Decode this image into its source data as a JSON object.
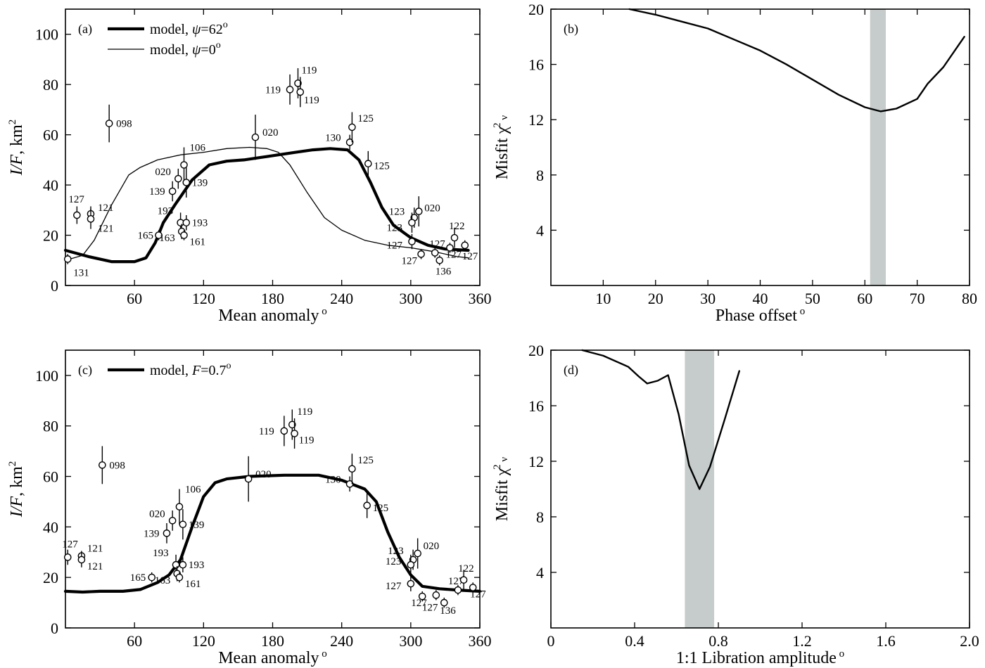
{
  "chart_data": [
    {
      "id": "a",
      "type": "scatter",
      "panel_label": "(a)",
      "xlabel": "Mean anomaly",
      "xlabel_sup": "o",
      "ylabel_italic": "I/F",
      "ylabel_rest": ", km",
      "ylabel_sup": "2",
      "xlim": [
        0,
        360
      ],
      "ylim": [
        0,
        110
      ],
      "xticks": [
        60,
        120,
        180,
        240,
        300,
        360
      ],
      "yticks": [
        0,
        20,
        40,
        60,
        80,
        100
      ],
      "legend": [
        {
          "pre": "model, ",
          "italic": "ψ",
          "post": "=62",
          "sup": "o",
          "style": "thick"
        },
        {
          "pre": "model, ",
          "italic": "ψ",
          "post": "=0",
          "sup": "o",
          "style": "thin"
        }
      ],
      "points": [
        {
          "x": 2,
          "y": 10.5,
          "err": 2,
          "label": "131"
        },
        {
          "x": 10,
          "y": 28,
          "err": 3.5,
          "label": "127"
        },
        {
          "x": 22,
          "y": 28.5,
          "err": 3,
          "label": "121"
        },
        {
          "x": 22,
          "y": 26.5,
          "err": 4,
          "label": "121"
        },
        {
          "x": 38,
          "y": 64.5,
          "err": 7.5,
          "label": "098"
        },
        {
          "x": 81,
          "y": 20,
          "err": 2,
          "label": "165"
        },
        {
          "x": 93,
          "y": 37.5,
          "err": 4,
          "label": "139"
        },
        {
          "x": 98,
          "y": 42.5,
          "err": 4,
          "label": "020"
        },
        {
          "x": 103,
          "y": 48,
          "err": 7,
          "label": "106"
        },
        {
          "x": 105,
          "y": 41,
          "err": 6,
          "label": "139"
        },
        {
          "x": 100,
          "y": 25,
          "err": 4,
          "label": "193"
        },
        {
          "x": 105,
          "y": 25,
          "err": 3,
          "label": "193"
        },
        {
          "x": 101,
          "y": 21.5,
          "err": 3,
          "label": "163"
        },
        {
          "x": 103,
          "y": 20,
          "err": 2,
          "label": "161"
        },
        {
          "x": 165,
          "y": 59,
          "err": 9,
          "label": "020"
        },
        {
          "x": 195,
          "y": 78,
          "err": 6,
          "label": "119"
        },
        {
          "x": 202,
          "y": 80.5,
          "err": 6,
          "label": "119"
        },
        {
          "x": 204,
          "y": 77,
          "err": 6,
          "label": "119"
        },
        {
          "x": 247,
          "y": 57,
          "err": 3,
          "label": "130"
        },
        {
          "x": 249,
          "y": 63,
          "err": 6,
          "label": "125"
        },
        {
          "x": 263,
          "y": 48.5,
          "err": 5,
          "label": "125"
        },
        {
          "x": 303,
          "y": 27,
          "err": 4,
          "label": "123"
        },
        {
          "x": 307,
          "y": 29.5,
          "err": 6,
          "label": "020"
        },
        {
          "x": 301,
          "y": 25,
          "err": 4,
          "label": "123"
        },
        {
          "x": 301,
          "y": 17.5,
          "err": 3,
          "label": "127"
        },
        {
          "x": 309,
          "y": 12.5,
          "err": 2,
          "label": "127"
        },
        {
          "x": 321,
          "y": 13,
          "err": 2,
          "label": "127"
        },
        {
          "x": 325,
          "y": 10,
          "err": 2,
          "label": "136"
        },
        {
          "x": 334,
          "y": 15,
          "err": 2,
          "label": "127"
        },
        {
          "x": 338,
          "y": 19,
          "err": 4,
          "label": "122"
        },
        {
          "x": 347,
          "y": 16,
          "err": 2,
          "label": "127"
        }
      ],
      "series": [
        {
          "name": "model, ψ=62°",
          "style": "thick",
          "x": [
            0,
            20,
            40,
            60,
            70,
            78,
            85,
            95,
            110,
            125,
            140,
            155,
            170,
            185,
            200,
            215,
            230,
            245,
            255,
            265,
            275,
            285,
            300,
            315,
            330,
            350
          ],
          "y": [
            14,
            11.5,
            9.5,
            9.5,
            11,
            17,
            25,
            32,
            42,
            48,
            49.5,
            50,
            51,
            52,
            53,
            54,
            54.5,
            54,
            50,
            41,
            31,
            24,
            19,
            16,
            14.5,
            14
          ]
        },
        {
          "name": "model, ψ=0°",
          "style": "thin",
          "x": [
            0,
            15,
            25,
            40,
            55,
            65,
            80,
            100,
            120,
            140,
            160,
            175,
            185,
            195,
            210,
            225,
            240,
            260,
            280,
            300,
            320,
            340,
            350
          ],
          "y": [
            10,
            12,
            18,
            32,
            44,
            47,
            50,
            52,
            53,
            54.5,
            55,
            54.5,
            53,
            48,
            37,
            27,
            22,
            18,
            16,
            15,
            13.5,
            11.5,
            11
          ]
        }
      ]
    },
    {
      "id": "b",
      "type": "line",
      "panel_label": "(b)",
      "xlabel": "Phase offset",
      "xlabel_sup": "o",
      "ylabel": "Misfit χ",
      "ylabel_sup": "2",
      "ylabel_sub": "ν",
      "xlim": [
        0,
        80
      ],
      "ylim": [
        0,
        20
      ],
      "xticks": [
        10,
        20,
        30,
        40,
        50,
        60,
        70,
        80
      ],
      "yticks": [
        4,
        8,
        12,
        16,
        20
      ],
      "shaded_band": [
        61,
        64
      ],
      "series": [
        {
          "name": "misfit",
          "x": [
            15,
            20,
            25,
            30,
            35,
            40,
            45,
            50,
            55,
            60,
            63,
            66,
            70,
            72,
            75,
            79
          ],
          "y": [
            20,
            19.6,
            19.1,
            18.6,
            17.8,
            17.0,
            16.0,
            14.9,
            13.8,
            12.9,
            12.6,
            12.8,
            13.5,
            14.6,
            15.8,
            18.0
          ]
        }
      ]
    },
    {
      "id": "c",
      "type": "scatter",
      "panel_label": "(c)",
      "xlabel": "Mean anomaly",
      "xlabel_sup": "o",
      "ylabel_italic": "I/F",
      "ylabel_rest": ", km",
      "ylabel_sup": "2",
      "xlim": [
        0,
        360
      ],
      "ylim": [
        0,
        110
      ],
      "xticks": [
        60,
        120,
        180,
        240,
        300,
        360
      ],
      "yticks": [
        0,
        20,
        40,
        60,
        80,
        100
      ],
      "legend": [
        {
          "pre": "model, ",
          "italic": "F",
          "post": "=0.7",
          "sup": "o",
          "style": "thick"
        }
      ],
      "points": [
        {
          "x": 2,
          "y": 28,
          "err": 3,
          "label": "127"
        },
        {
          "x": 14,
          "y": 28.5,
          "err": 2,
          "label": "121"
        },
        {
          "x": 14,
          "y": 27,
          "err": 3,
          "label": "121"
        },
        {
          "x": 32,
          "y": 64.5,
          "err": 7.5,
          "label": "098"
        },
        {
          "x": 75,
          "y": 20,
          "err": 2,
          "label": "165"
        },
        {
          "x": 88,
          "y": 37.5,
          "err": 4,
          "label": "139"
        },
        {
          "x": 93,
          "y": 42.5,
          "err": 4,
          "label": "020"
        },
        {
          "x": 99,
          "y": 48,
          "err": 7,
          "label": "106"
        },
        {
          "x": 102,
          "y": 41,
          "err": 6,
          "label": "139"
        },
        {
          "x": 96,
          "y": 25,
          "err": 4,
          "label": "193"
        },
        {
          "x": 102,
          "y": 25,
          "err": 3,
          "label": "193"
        },
        {
          "x": 97,
          "y": 21.5,
          "err": 3,
          "label": "163"
        },
        {
          "x": 99,
          "y": 20,
          "err": 2,
          "label": "161"
        },
        {
          "x": 159,
          "y": 59,
          "err": 9,
          "label": "020"
        },
        {
          "x": 190,
          "y": 78,
          "err": 6,
          "label": "119"
        },
        {
          "x": 197,
          "y": 80.5,
          "err": 6,
          "label": "119"
        },
        {
          "x": 199,
          "y": 77,
          "err": 6,
          "label": "119"
        },
        {
          "x": 247,
          "y": 57,
          "err": 3,
          "label": "130"
        },
        {
          "x": 249,
          "y": 63,
          "err": 6,
          "label": "125"
        },
        {
          "x": 262,
          "y": 48.5,
          "err": 5,
          "label": "125"
        },
        {
          "x": 302,
          "y": 27,
          "err": 4,
          "label": "123"
        },
        {
          "x": 306,
          "y": 29.5,
          "err": 6,
          "label": "020"
        },
        {
          "x": 300,
          "y": 25,
          "err": 4,
          "label": "123"
        },
        {
          "x": 300,
          "y": 17.5,
          "err": 3,
          "label": "127"
        },
        {
          "x": 310,
          "y": 12.5,
          "err": 2,
          "label": "127"
        },
        {
          "x": 322,
          "y": 13,
          "err": 2,
          "label": "127"
        },
        {
          "x": 329,
          "y": 10,
          "err": 2,
          "label": "136"
        },
        {
          "x": 341,
          "y": 15,
          "err": 2,
          "label": "127"
        },
        {
          "x": 346,
          "y": 19,
          "err": 4,
          "label": "122"
        },
        {
          "x": 354,
          "y": 16,
          "err": 2,
          "label": "127"
        }
      ],
      "series": [
        {
          "name": "model, F=0.7°",
          "style": "thick",
          "x": [
            0,
            15,
            30,
            50,
            65,
            80,
            90,
            100,
            110,
            120,
            130,
            140,
            160,
            190,
            220,
            240,
            260,
            270,
            280,
            290,
            300,
            310,
            325,
            340,
            360
          ],
          "y": [
            14.5,
            14.2,
            14.5,
            14.5,
            15.2,
            18,
            21,
            27,
            40,
            52,
            57.5,
            59,
            60,
            60.5,
            60.5,
            58.5,
            55,
            50,
            38,
            28,
            21,
            16.5,
            15.5,
            15,
            14.5
          ]
        }
      ]
    },
    {
      "id": "d",
      "type": "line",
      "panel_label": "(d)",
      "xlabel": "1:1 Libration amplitude",
      "xlabel_sup": "o",
      "ylabel": "Misfit χ",
      "ylabel_sup": "2",
      "ylabel_sub": "ν",
      "xlim": [
        0,
        2.0
      ],
      "ylim": [
        0,
        20
      ],
      "xticks": [
        0,
        0.4,
        0.8,
        1.2,
        1.6,
        2.0
      ],
      "xtick_labels": [
        "0",
        "0.4",
        "0.8",
        "1.2",
        "1.6",
        "2.0"
      ],
      "yticks": [
        4,
        8,
        12,
        16,
        20
      ],
      "shaded_band": [
        0.64,
        0.78
      ],
      "series": [
        {
          "name": "misfit",
          "x": [
            0.15,
            0.25,
            0.37,
            0.42,
            0.46,
            0.51,
            0.56,
            0.61,
            0.66,
            0.71,
            0.76,
            0.83,
            0.9
          ],
          "y": [
            20,
            19.6,
            18.8,
            18.1,
            17.6,
            17.8,
            18.2,
            15.4,
            11.7,
            10.0,
            11.6,
            15.0,
            18.5
          ]
        }
      ]
    }
  ]
}
